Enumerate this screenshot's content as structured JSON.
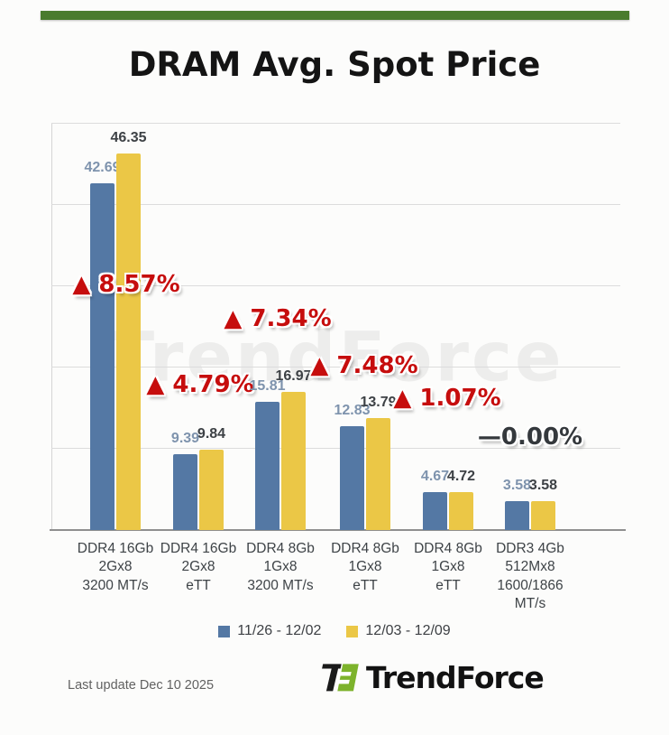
{
  "page": {
    "title": "DRAM Avg. Spot Price",
    "accent_color": "#4a7b2e",
    "watermark": "TrendForce",
    "last_update": "Last update Dec 10 2025",
    "brand_name": "TrendForce"
  },
  "chart_data": {
    "type": "bar",
    "title": "DRAM Avg. Spot Price",
    "ylim": [
      0,
      50
    ],
    "gridline_step": 10,
    "grid": true,
    "legend_position": "bottom",
    "categories": [
      "DDR4 16Gb\n2Gx8\n3200 MT/s",
      "DDR4 16Gb\n2Gx8\neTT",
      "DDR4 8Gb\n1Gx8\n3200 MT/s",
      "DDR4 8Gb\n1Gx8\neTT",
      "DDR4 8Gb\n1Gx8\neTT",
      "DDR3 4Gb\n512Mx8\n1600/1866 MT/s"
    ],
    "series": [
      {
        "name": "11/26 - 12/02",
        "color": "#5478a4",
        "values": [
          42.69,
          9.39,
          15.81,
          12.83,
          4.67,
          3.58
        ]
      },
      {
        "name": "12/03 - 12/09",
        "color": "#ebc746",
        "values": [
          46.35,
          9.84,
          16.97,
          13.79,
          4.72,
          3.58
        ]
      }
    ],
    "value_label_colors": [
      "#7e93ad",
      "#3d4145"
    ],
    "annotations": [
      {
        "label": "▲ 8.57%",
        "color": "#c60d0d"
      },
      {
        "label": "▲ 4.79%",
        "color": "#c60d0d"
      },
      {
        "label": "▲ 7.34%",
        "color": "#c60d0d"
      },
      {
        "label": "▲ 7.48%",
        "color": "#c60d0d"
      },
      {
        "label": "▲ 1.07%",
        "color": "#c60d0d"
      },
      {
        "label": "—0.00%",
        "color": "#34383c"
      }
    ]
  }
}
